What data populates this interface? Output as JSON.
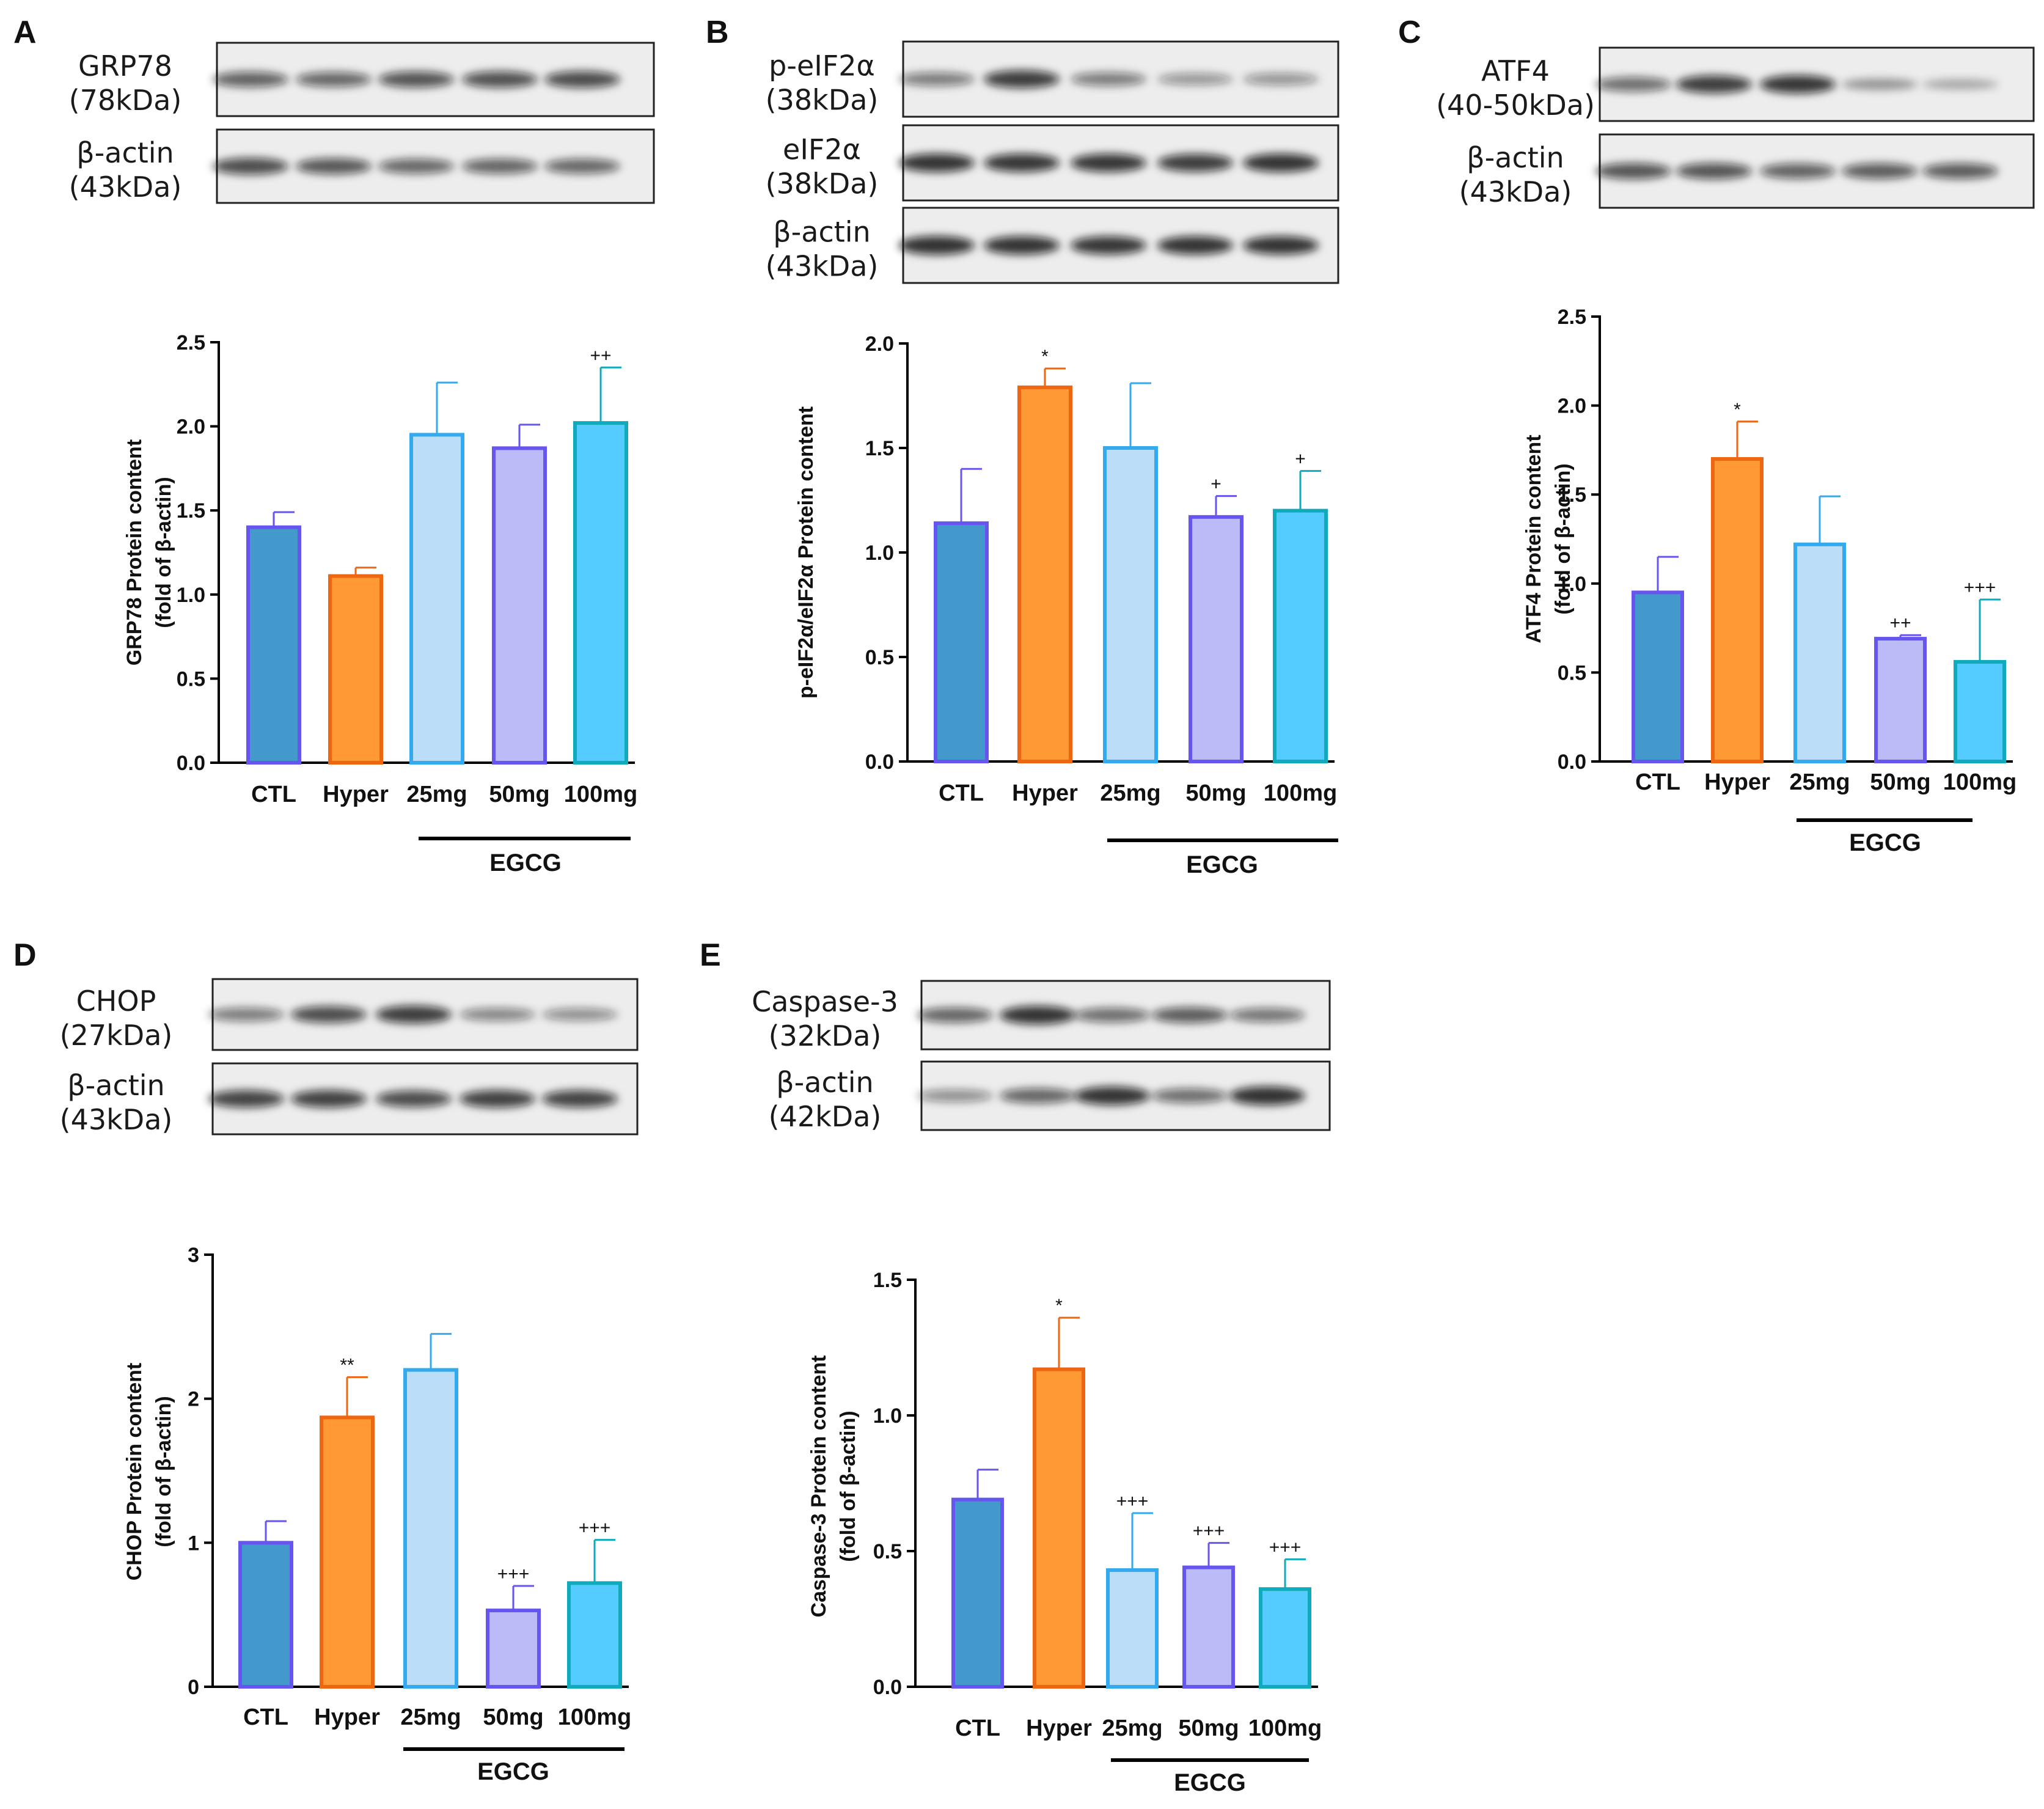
{
  "colors": {
    "CTL": {
      "fill": "#4499CC",
      "stroke": "#6655EE"
    },
    "Hyper": {
      "fill": "#FF9933",
      "stroke": "#EE6611"
    },
    "25mg": {
      "fill": "#BBDDF8",
      "stroke": "#33AAEE"
    },
    "50mg": {
      "fill": "#BBBBF8",
      "stroke": "#6655EE"
    },
    "100mg": {
      "fill": "#55CCFF",
      "stroke": "#11AABB"
    }
  },
  "chart_data": [
    {
      "panel": "A",
      "type": "bar",
      "blots": [
        {
          "name": "GRP78",
          "size": "(78kDa)",
          "bands": [
            0.62,
            0.58,
            0.7,
            0.72,
            0.75
          ]
        },
        {
          "name": "β-actin",
          "size": "(43kDa)",
          "bands": [
            0.75,
            0.68,
            0.58,
            0.6,
            0.58
          ]
        }
      ],
      "categories": [
        "CTL",
        "Hyper",
        "25mg",
        "50mg",
        "100mg"
      ],
      "values": [
        1.4,
        1.11,
        1.95,
        1.87,
        2.02
      ],
      "errors": [
        0.09,
        0.05,
        0.31,
        0.14,
        0.33
      ],
      "significance": [
        "",
        "",
        "",
        "",
        "++"
      ],
      "ylabel": [
        "GRP78 Protein content",
        "(fold of β-actin)"
      ],
      "ylim": [
        0,
        2.5
      ],
      "yticks": [
        "0.0",
        "0.5",
        "1.0",
        "1.5",
        "2.0",
        "2.5"
      ],
      "group_label": "EGCG"
    },
    {
      "panel": "B",
      "type": "bar",
      "blots": [
        {
          "name": "p-eIF2α",
          "size": "(38kDa)",
          "bands": [
            0.45,
            0.85,
            0.45,
            0.3,
            0.32
          ]
        },
        {
          "name": "eIF2α",
          "size": "(38kDa)",
          "bands": [
            0.9,
            0.88,
            0.88,
            0.85,
            0.9
          ]
        },
        {
          "name": "β-actin",
          "size": "(43kDa)",
          "bands": [
            0.92,
            0.9,
            0.88,
            0.9,
            0.9
          ]
        }
      ],
      "categories": [
        "CTL",
        "Hyper",
        "25mg",
        "50mg",
        "100mg"
      ],
      "values": [
        1.14,
        1.79,
        1.5,
        1.17,
        1.2
      ],
      "errors": [
        0.26,
        0.09,
        0.31,
        0.1,
        0.19
      ],
      "significance": [
        "",
        "*",
        "",
        "+",
        "+"
      ],
      "ylabel": [
        "p-eIF2α/eIF2α Protein content"
      ],
      "ylim": [
        0,
        2.0
      ],
      "yticks": [
        "0.0",
        "0.5",
        "1.0",
        "1.5",
        "2.0"
      ],
      "group_label": "EGCG"
    },
    {
      "panel": "C",
      "type": "bar",
      "blots": [
        {
          "name": "ATF4",
          "size": "(40-50kDa)",
          "bands": [
            0.55,
            0.85,
            0.88,
            0.25,
            0.15
          ]
        },
        {
          "name": "β-actin",
          "size": "(43kDa)",
          "bands": [
            0.7,
            0.7,
            0.62,
            0.65,
            0.65
          ]
        }
      ],
      "categories": [
        "CTL",
        "Hyper",
        "25mg",
        "50mg",
        "100mg"
      ],
      "values": [
        0.95,
        1.7,
        1.22,
        0.69,
        0.56
      ],
      "errors": [
        0.2,
        0.21,
        0.27,
        0.02,
        0.35
      ],
      "significance": [
        "",
        "*",
        "",
        "++",
        "+++"
      ],
      "ylabel": [
        "ATF4 Protein content",
        "(fold of β-actin)"
      ],
      "ylim": [
        0,
        2.5
      ],
      "yticks": [
        "0.0",
        "0.5",
        "1.0",
        "1.5",
        "2.0",
        "2.5"
      ],
      "group_label": "EGCG"
    },
    {
      "panel": "D",
      "type": "bar",
      "blots": [
        {
          "name": "CHOP",
          "size": "(27kDa)",
          "bands": [
            0.45,
            0.75,
            0.85,
            0.4,
            0.35
          ]
        },
        {
          "name": "β-actin",
          "size": "(43kDa)",
          "bands": [
            0.8,
            0.82,
            0.75,
            0.82,
            0.8
          ]
        }
      ],
      "categories": [
        "CTL",
        "Hyper",
        "25mg",
        "50mg",
        "100mg"
      ],
      "values": [
        1.0,
        1.87,
        2.2,
        0.53,
        0.72
      ],
      "errors": [
        0.15,
        0.28,
        0.25,
        0.17,
        0.3
      ],
      "significance": [
        "",
        "**",
        "",
        "+++",
        "+++"
      ],
      "ylabel": [
        "CHOP Protein content",
        "(fold of β-actin)"
      ],
      "ylim": [
        0,
        3
      ],
      "yticks": [
        "0",
        "1",
        "2",
        "3"
      ],
      "group_label": "EGCG"
    },
    {
      "panel": "E",
      "type": "bar",
      "blots": [
        {
          "name": "Caspase-3",
          "size": "(32kDa)",
          "bands": [
            0.6,
            0.9,
            0.55,
            0.65,
            0.5
          ]
        },
        {
          "name": "β-actin",
          "size": "(42kDa)",
          "bands": [
            0.35,
            0.6,
            0.9,
            0.55,
            0.92
          ]
        }
      ],
      "categories": [
        "CTL",
        "Hyper",
        "25mg",
        "50mg",
        "100mg"
      ],
      "values": [
        0.69,
        1.17,
        0.43,
        0.44,
        0.36
      ],
      "errors": [
        0.11,
        0.19,
        0.21,
        0.09,
        0.11
      ],
      "significance": [
        "",
        "*",
        "+++",
        "+++",
        "+++"
      ],
      "ylabel": [
        "Caspase-3 Protein content",
        "(fold of β-actin)"
      ],
      "ylim": [
        0,
        1.5
      ],
      "yticks": [
        "0.0",
        "0.5",
        "1.0",
        "1.5"
      ],
      "group_label": "EGCG"
    }
  ]
}
